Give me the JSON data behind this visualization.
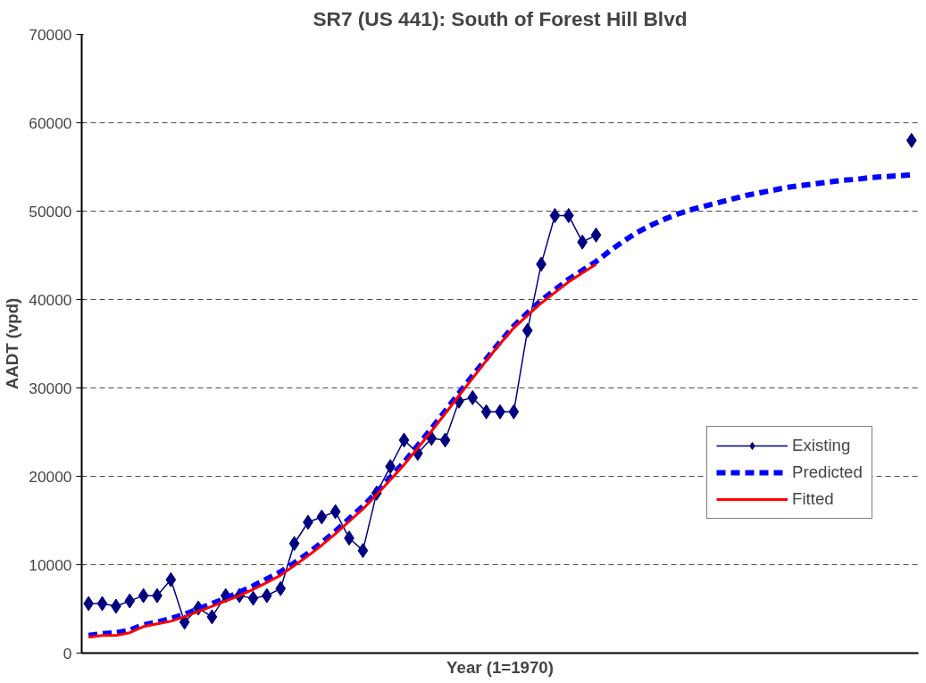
{
  "chart_data": {
    "type": "line",
    "title": "SR7 (US 441): South of Forest Hill Blvd",
    "xlabel": "Year (1=1970)",
    "ylabel": "AADT (vpd)",
    "categories": [
      null,
      null,
      null,
      null,
      null,
      null,
      null,
      null,
      null,
      null,
      null,
      null,
      null,
      null,
      null,
      null,
      null,
      null,
      null,
      null,
      null,
      null,
      null,
      null,
      null,
      null,
      null,
      null,
      null,
      null,
      null,
      null,
      null,
      null,
      null,
      null,
      null,
      null,
      null,
      null,
      null,
      null,
      null,
      null,
      null,
      null,
      null,
      null,
      null,
      null,
      null,
      null,
      null,
      null,
      null,
      null,
      null,
      null,
      null,
      null,
      null
    ],
    "ylim": [
      0,
      70000
    ],
    "yticks": [
      0,
      10000,
      20000,
      30000,
      40000,
      50000,
      60000,
      70000
    ],
    "grid": "y",
    "legend": "right",
    "tick_labels": "y",
    "series": [
      {
        "name": "Existing",
        "color": "#000080",
        "marker": "diamond",
        "line_style": "solid",
        "values": [
          5600,
          5600,
          5300,
          5900,
          6500,
          6500,
          8300,
          3500,
          5100,
          4100,
          6500,
          6500,
          6200,
          6500,
          7300,
          12400,
          14800,
          15400,
          16000,
          13000,
          11600,
          18100,
          21100,
          24100,
          22600,
          24300,
          24100,
          28500,
          28900,
          27300,
          27300,
          27300,
          36500,
          44000,
          49500,
          49500,
          46500,
          47300,
          null,
          null,
          null,
          null,
          null,
          null,
          null,
          null,
          null,
          null,
          null,
          null,
          null,
          null,
          null,
          null,
          null,
          null,
          null,
          null,
          null,
          null,
          58000
        ]
      },
      {
        "name": "Predicted",
        "color": "#0000ff",
        "marker": "none",
        "line_style": "dashed",
        "values": [
          2000,
          2200,
          2300,
          2600,
          3200,
          3500,
          3900,
          4400,
          5000,
          5600,
          6200,
          6900,
          7600,
          8400,
          9200,
          10200,
          11300,
          12500,
          13800,
          15200,
          16600,
          18200,
          19900,
          21600,
          23500,
          25400,
          27400,
          29400,
          31400,
          33300,
          35200,
          37000,
          38500,
          39900,
          41100,
          42300,
          43300,
          44300,
          45500,
          46600,
          47600,
          48400,
          49100,
          49700,
          50200,
          50600,
          51000,
          51400,
          51800,
          52100,
          52400,
          52700,
          52900,
          53100,
          53300,
          53500,
          53600,
          53800,
          53900,
          54000,
          54100
        ]
      },
      {
        "name": "Fitted",
        "color": "#ff0000",
        "marker": "none",
        "line_style": "solid",
        "values": [
          1800,
          2000,
          2000,
          2300,
          3000,
          3300,
          3600,
          4100,
          4700,
          5300,
          5900,
          6500,
          7200,
          8000,
          8800,
          9900,
          11000,
          12200,
          13500,
          14900,
          16300,
          17900,
          19600,
          21300,
          23200,
          25100,
          27100,
          29100,
          31100,
          33100,
          35000,
          36800,
          38200,
          39600,
          40800,
          42000,
          43000,
          44000,
          null,
          null,
          null,
          null,
          null,
          null,
          null,
          null,
          null,
          null,
          null,
          null,
          null,
          null,
          null,
          null,
          null,
          null,
          null,
          null,
          null,
          null,
          null
        ]
      }
    ]
  }
}
